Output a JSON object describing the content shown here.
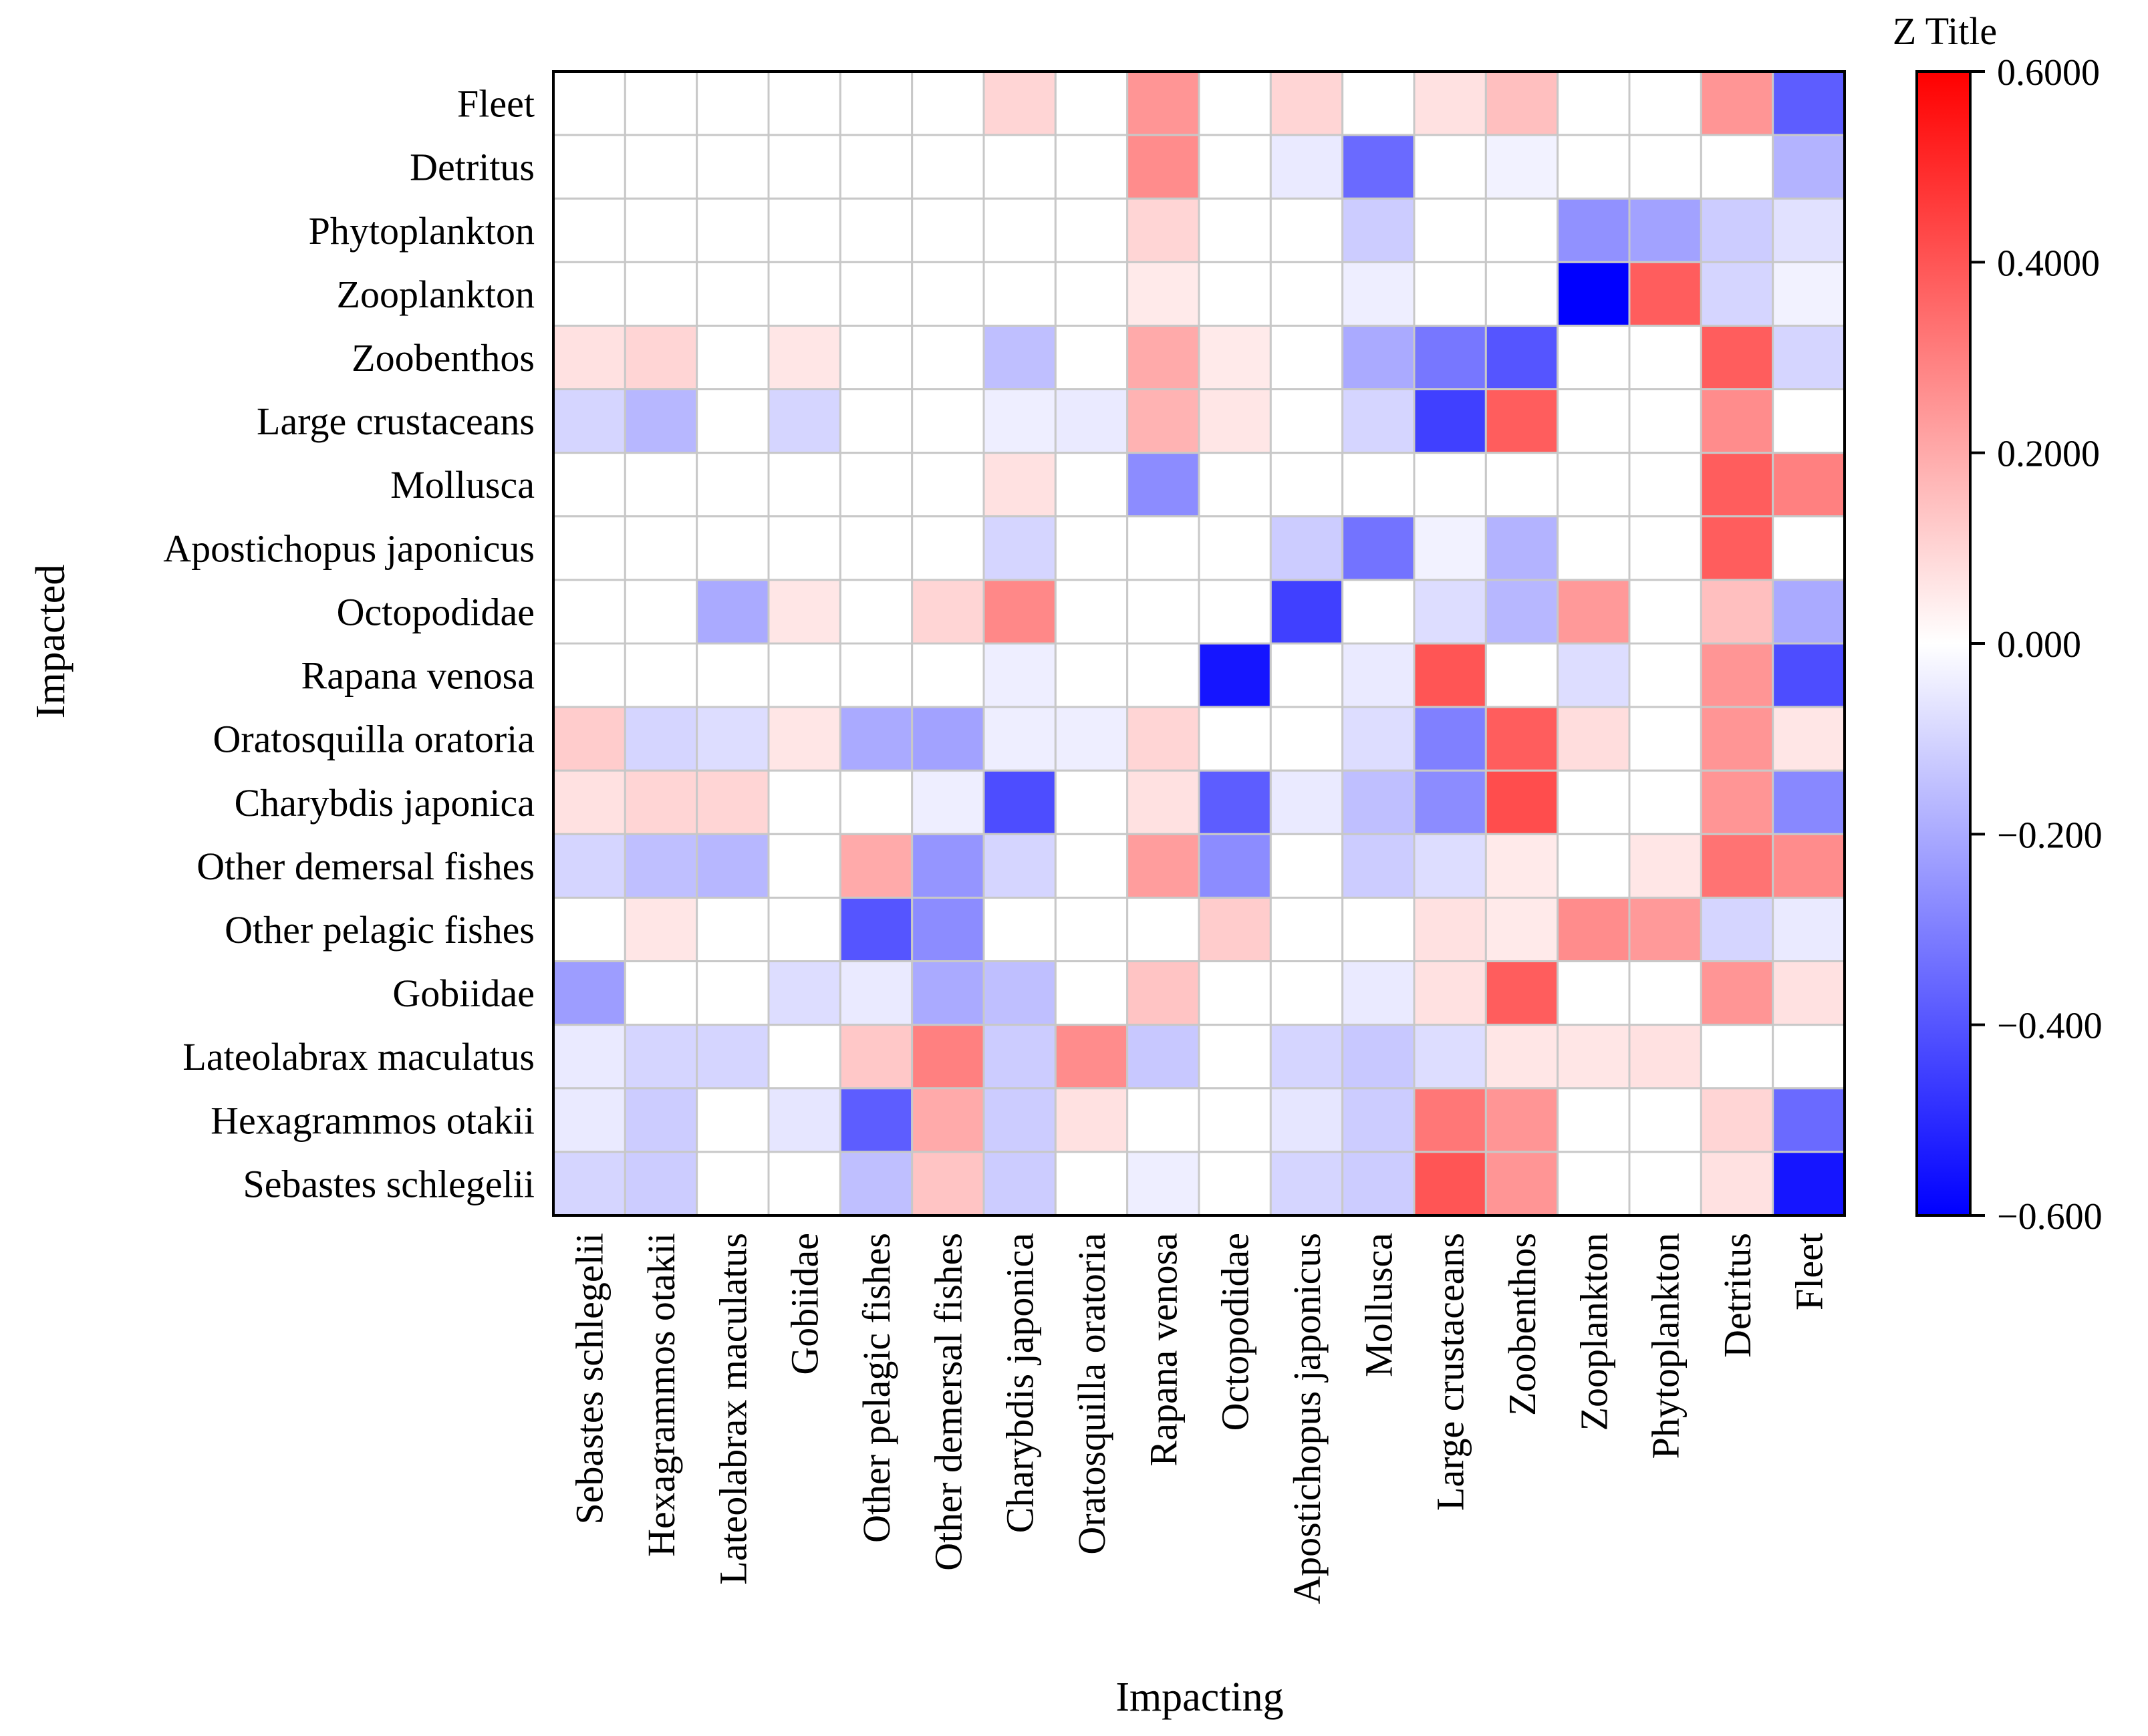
{
  "chart_data": {
    "type": "heatmap",
    "title": "",
    "xlabel": "Impacting",
    "ylabel": "Impacted",
    "colorbar": {
      "title": "Z Title",
      "range": [
        -0.6,
        0.6
      ],
      "tick_labels": [
        "0.6000",
        "0.4000",
        "0.2000",
        "0.000",
        "−0.200",
        "−0.400",
        "−0.600"
      ],
      "tick_values": [
        0.6,
        0.4,
        0.2,
        0.0,
        -0.2,
        -0.4,
        -0.6
      ],
      "colors": {
        "negative": "#0000ff",
        "zero": "#ffffff",
        "positive": "#ff0000"
      }
    },
    "grid": true,
    "x_categories": [
      "Sebastes schlegelii",
      "Hexagrammos otakii",
      "Lateolabrax maculatus",
      "Gobiidae",
      "Other pelagic fishes",
      "Other demersal fishes",
      "Charybdis japonica",
      "Oratosquilla oratoria",
      "Rapana venosa",
      "Octopodidae",
      "Apostichopus japonicus",
      "Mollusca",
      "Large crustaceans",
      "Zoobenthos",
      "Zooplankton",
      "Phytoplankton",
      "Detritus",
      "Fleet"
    ],
    "y_categories": [
      "Fleet",
      "Detritus",
      "Phytoplankton",
      "Zooplankton",
      "Zoobenthos",
      "Large crustaceans",
      "Mollusca",
      "Apostichopus japonicus",
      "Octopodidae",
      "Rapana venosa",
      "Oratosquilla oratoria",
      "Charybdis japonica",
      "Other demersal fishes",
      "Other pelagic fishes",
      "Gobiidae",
      "Lateolabrax maculatus",
      "Hexagrammos otakii",
      "Sebastes schlegelii"
    ],
    "values": [
      [
        0,
        0,
        0,
        0,
        0,
        0,
        0.1,
        0,
        0.25,
        0,
        0.1,
        0,
        0.07,
        0.15,
        0,
        0,
        0.25,
        -0.38
      ],
      [
        0,
        0,
        0,
        0,
        0,
        0,
        0,
        0,
        0.27,
        0,
        -0.05,
        -0.35,
        0,
        -0.03,
        0,
        0,
        0,
        -0.18
      ],
      [
        0,
        0,
        0,
        0,
        0,
        0,
        0,
        0,
        0.1,
        0,
        0,
        -0.12,
        0,
        0,
        -0.26,
        -0.22,
        -0.12,
        -0.07
      ],
      [
        0,
        0,
        0,
        0,
        0,
        0,
        0,
        0,
        0.05,
        0,
        0,
        -0.04,
        0,
        0,
        -0.6,
        0.38,
        -0.1,
        -0.03
      ],
      [
        0.07,
        0.1,
        0,
        0.06,
        0,
        0,
        -0.15,
        0,
        0.2,
        0.05,
        0,
        -0.2,
        -0.32,
        -0.4,
        0,
        0,
        0.38,
        -0.1
      ],
      [
        -0.1,
        -0.17,
        0,
        -0.1,
        0,
        0,
        -0.04,
        -0.05,
        0.18,
        0.06,
        0,
        -0.1,
        -0.45,
        0.38,
        0,
        0,
        0.27,
        0
      ],
      [
        0,
        0,
        0,
        0,
        0,
        0,
        0.07,
        0,
        -0.27,
        0,
        0,
        0,
        0,
        0,
        0,
        0,
        0.38,
        0.3
      ],
      [
        0,
        0,
        0,
        0,
        0,
        0,
        -0.1,
        0,
        0,
        0,
        -0.12,
        -0.33,
        -0.03,
        -0.18,
        0,
        0,
        0.38,
        0
      ],
      [
        0,
        0,
        -0.2,
        0.06,
        0,
        0.1,
        0.28,
        0,
        0,
        0,
        -0.45,
        0,
        -0.08,
        -0.17,
        0.24,
        0,
        0.15,
        -0.2
      ],
      [
        0,
        0,
        0,
        0,
        0,
        0,
        -0.04,
        0,
        0,
        -0.55,
        0,
        -0.05,
        0.4,
        0,
        -0.08,
        0,
        0.25,
        -0.42
      ],
      [
        0.12,
        -0.1,
        -0.08,
        0.06,
        -0.2,
        -0.22,
        -0.04,
        -0.04,
        0.1,
        0,
        0,
        -0.08,
        -0.3,
        0.38,
        0.08,
        0,
        0.25,
        0.06
      ],
      [
        0.07,
        0.1,
        0.1,
        0,
        0,
        -0.04,
        -0.42,
        0,
        0.07,
        -0.38,
        -0.05,
        -0.15,
        -0.27,
        0.42,
        0,
        0,
        0.25,
        -0.28
      ],
      [
        -0.1,
        -0.15,
        -0.17,
        0,
        0.2,
        -0.25,
        -0.1,
        0,
        0.23,
        -0.27,
        0,
        -0.12,
        -0.08,
        0.05,
        0,
        0.06,
        0.33,
        0.27
      ],
      [
        0,
        0.06,
        0,
        0,
        -0.4,
        -0.27,
        0,
        0,
        0,
        0.12,
        0,
        0,
        0.07,
        0.05,
        0.27,
        0.24,
        -0.1,
        -0.05
      ],
      [
        -0.23,
        0,
        0,
        -0.08,
        -0.05,
        -0.2,
        -0.15,
        0,
        0.14,
        0,
        0,
        -0.05,
        0.07,
        0.38,
        0,
        0,
        0.25,
        0.07
      ],
      [
        -0.05,
        -0.1,
        -0.1,
        0,
        0.13,
        0.3,
        -0.12,
        0.27,
        -0.13,
        0,
        -0.1,
        -0.13,
        -0.08,
        0.06,
        0.06,
        0.07,
        0,
        0
      ],
      [
        -0.05,
        -0.12,
        0,
        -0.06,
        -0.38,
        0.2,
        -0.12,
        0.07,
        0,
        0,
        -0.06,
        -0.12,
        0.32,
        0.25,
        0,
        0,
        0.1,
        -0.35
      ],
      [
        -0.1,
        -0.12,
        0,
        0,
        -0.15,
        0.14,
        -0.12,
        0,
        -0.04,
        0,
        -0.1,
        -0.12,
        0.4,
        0.25,
        0,
        0,
        0.07,
        -0.55
      ]
    ]
  }
}
